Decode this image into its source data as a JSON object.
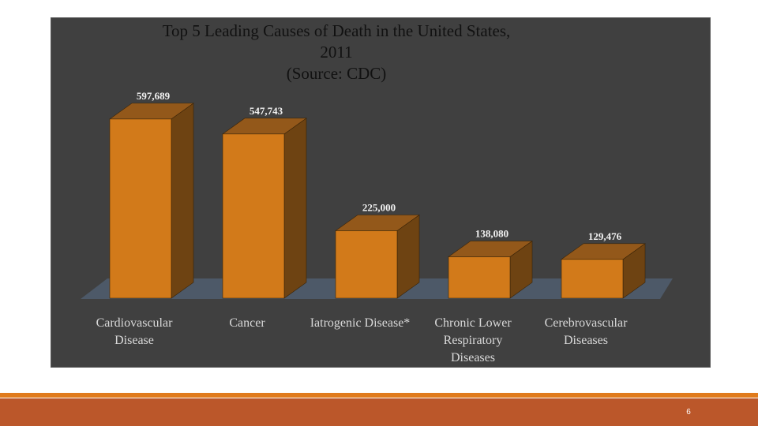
{
  "chart_data": {
    "type": "bar",
    "title_lines": [
      "Top 5 Leading Causes of Death in the United States,",
      "2011",
      "(Source: CDC)"
    ],
    "categories": [
      [
        "Cardiovascular",
        "Disease"
      ],
      [
        "Cancer"
      ],
      [
        "Iatrogenic Disease*"
      ],
      [
        "Chronic Lower",
        "Respiratory",
        "Diseases"
      ],
      [
        "Cerebrovascular",
        "Diseases"
      ]
    ],
    "values": [
      597689,
      547743,
      225000,
      138080,
      129476
    ],
    "data_labels": [
      "597,689",
      "547,743",
      "225,000",
      "138,080",
      "129,476"
    ],
    "ylim": [
      0,
      600000
    ],
    "xlabel": "",
    "ylabel": "",
    "grid": false,
    "legend": "none"
  },
  "colors": {
    "panel_bg": "#404040",
    "bar_front": "#d27a1a",
    "bar_side": "#6e4312",
    "bar_top": "#93581a",
    "floor": "#4d5968",
    "title": "#111111",
    "label": "#d9d9d9",
    "footer_thin": "#e07b1c",
    "footer": "#bb572a"
  },
  "footer": {
    "page_number": "6"
  }
}
